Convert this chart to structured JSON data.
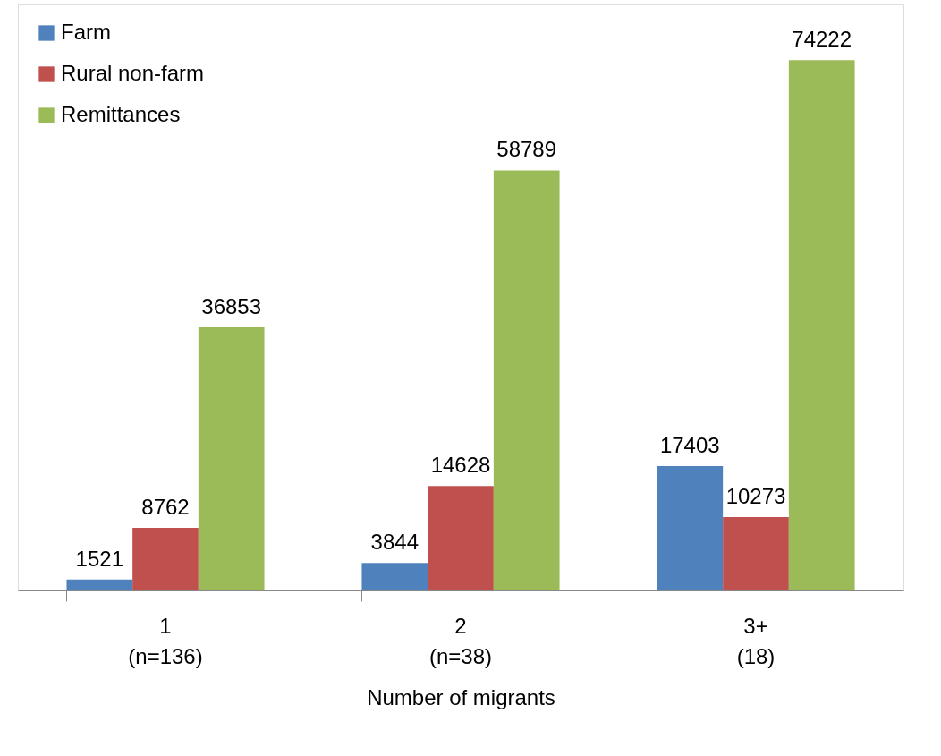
{
  "chart_data": {
    "type": "bar",
    "xlabel": "Number of migrants",
    "categories": [
      "1\n(n=136)",
      "2\n(n=38)",
      "3+\n(18)"
    ],
    "series": [
      {
        "name": "Farm",
        "color": "#4f81bd",
        "values": [
          1521,
          3844,
          17403
        ]
      },
      {
        "name": "Rural non-farm",
        "color": "#c0504d",
        "values": [
          8762,
          14628,
          10273
        ]
      },
      {
        "name": "Remittances",
        "color": "#9bbb59",
        "values": [
          36853,
          58789,
          74222
        ]
      }
    ],
    "ylim": [
      0,
      82000
    ],
    "data_labels": true,
    "legend": "top left",
    "grid": false,
    "tick_labels": "x"
  }
}
